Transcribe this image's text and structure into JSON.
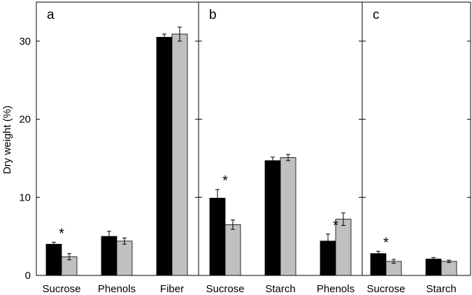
{
  "chart_data": {
    "type": "bar",
    "ylabel": "Dry weight (%)",
    "ylim": [
      0,
      35
    ],
    "yticks": [
      0,
      10,
      20,
      30
    ],
    "grid": false,
    "legend": "none",
    "colors": {
      "series_1": "#000000",
      "series_2": "#c0c0c0"
    },
    "panels": [
      {
        "label": "a",
        "categories": [
          "Sucrose",
          "Phenols",
          "Fiber"
        ],
        "series": [
          {
            "values": [
              4.0,
              5.0,
              30.5
            ],
            "errors": [
              0.25,
              0.65,
              0.4
            ]
          },
          {
            "values": [
              2.4,
              4.4,
              30.9
            ],
            "errors": [
              0.4,
              0.4,
              0.9
            ]
          }
        ],
        "significant": [
          true,
          false,
          false
        ]
      },
      {
        "label": "b",
        "categories": [
          "Sucrose",
          "Starch",
          "Phenols"
        ],
        "series": [
          {
            "values": [
              9.9,
              14.7,
              4.4
            ],
            "errors": [
              1.1,
              0.45,
              0.9
            ]
          },
          {
            "values": [
              6.5,
              15.1,
              7.2
            ],
            "errors": [
              0.6,
              0.4,
              0.8
            ]
          }
        ],
        "significant": [
          true,
          false,
          true
        ]
      },
      {
        "label": "c",
        "categories": [
          "Sucrose",
          "Starch"
        ],
        "series": [
          {
            "values": [
              2.8,
              2.1
            ],
            "errors": [
              0.3,
              0.2
            ]
          },
          {
            "values": [
              1.8,
              1.8
            ],
            "errors": [
              0.25,
              0.15
            ]
          }
        ],
        "significant": [
          true,
          false
        ]
      }
    ],
    "significance_marker": "*"
  }
}
